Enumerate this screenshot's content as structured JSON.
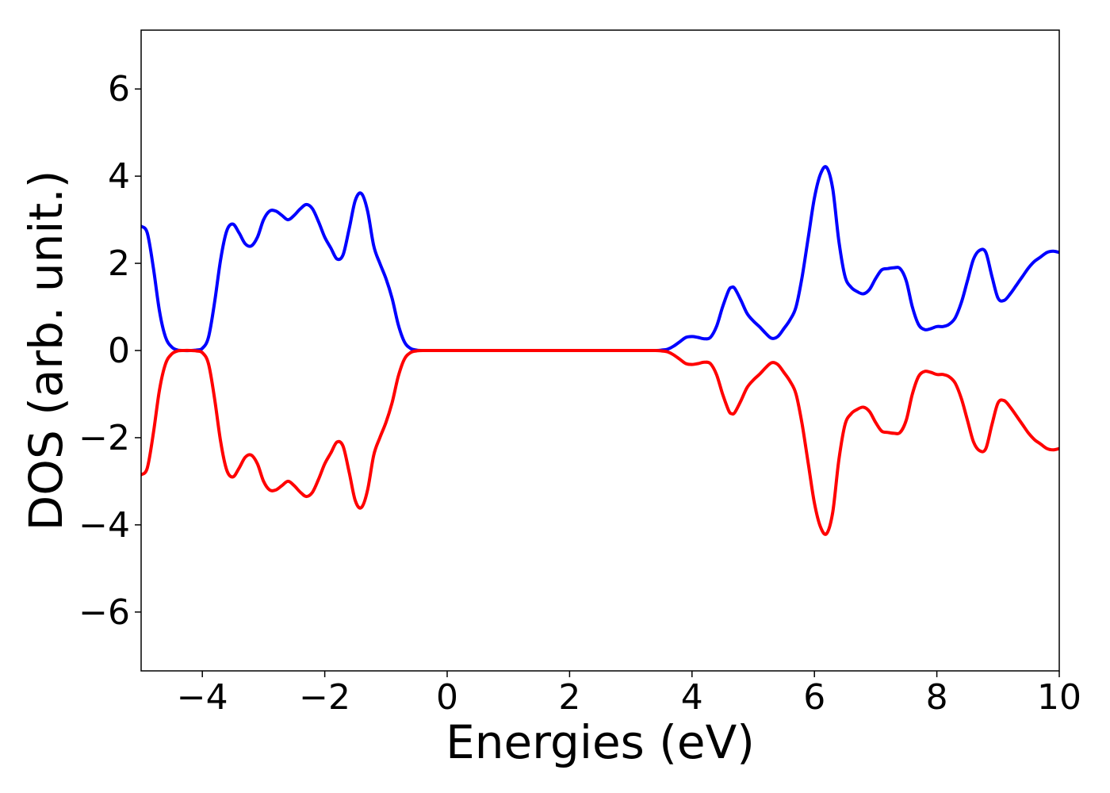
{
  "chart_data": {
    "type": "line",
    "title": "",
    "xlabel": "Energies (eV)",
    "ylabel": "DOS (arb. unit.)",
    "xlim": [
      -5,
      10
    ],
    "ylim": [
      -7.35,
      7.35
    ],
    "xticks": [
      -4,
      -2,
      0,
      2,
      4,
      6,
      8,
      10
    ],
    "yticks": [
      -6,
      -4,
      -2,
      0,
      2,
      4,
      6
    ],
    "xtick_labels": [
      "−4",
      "−2",
      "0",
      "2",
      "4",
      "6",
      "8",
      "10"
    ],
    "ytick_labels": [
      "−6",
      "−4",
      "−2",
      "0",
      "2",
      "4",
      "6"
    ],
    "grid": false,
    "legend": "none",
    "series": [
      {
        "color": "#0000ff",
        "points": [
          [
            -5.0,
            2.85
          ],
          [
            -4.9,
            2.7
          ],
          [
            -4.8,
            1.9
          ],
          [
            -4.7,
            0.9
          ],
          [
            -4.6,
            0.3
          ],
          [
            -4.5,
            0.08
          ],
          [
            -4.4,
            0.01
          ],
          [
            -4.3,
            0.0
          ],
          [
            -4.2,
            0.0
          ],
          [
            -4.1,
            0.01
          ],
          [
            -4.0,
            0.05
          ],
          [
            -3.9,
            0.3
          ],
          [
            -3.8,
            1.1
          ],
          [
            -3.7,
            2.1
          ],
          [
            -3.6,
            2.75
          ],
          [
            -3.5,
            2.9
          ],
          [
            -3.4,
            2.7
          ],
          [
            -3.3,
            2.45
          ],
          [
            -3.2,
            2.4
          ],
          [
            -3.1,
            2.6
          ],
          [
            -3.0,
            3.0
          ],
          [
            -2.9,
            3.2
          ],
          [
            -2.8,
            3.2
          ],
          [
            -2.7,
            3.1
          ],
          [
            -2.6,
            3.0
          ],
          [
            -2.5,
            3.1
          ],
          [
            -2.4,
            3.25
          ],
          [
            -2.3,
            3.35
          ],
          [
            -2.2,
            3.25
          ],
          [
            -2.1,
            2.95
          ],
          [
            -2.0,
            2.6
          ],
          [
            -1.9,
            2.35
          ],
          [
            -1.8,
            2.1
          ],
          [
            -1.7,
            2.2
          ],
          [
            -1.6,
            2.8
          ],
          [
            -1.5,
            3.45
          ],
          [
            -1.4,
            3.6
          ],
          [
            -1.3,
            3.2
          ],
          [
            -1.2,
            2.4
          ],
          [
            -1.1,
            2.0
          ],
          [
            -1.0,
            1.65
          ],
          [
            -0.9,
            1.2
          ],
          [
            -0.8,
            0.6
          ],
          [
            -0.7,
            0.2
          ],
          [
            -0.6,
            0.05
          ],
          [
            -0.5,
            0.01
          ],
          [
            -0.4,
            0.0
          ],
          [
            0.0,
            0.0
          ],
          [
            1.0,
            0.0
          ],
          [
            2.0,
            0.0
          ],
          [
            3.0,
            0.0
          ],
          [
            3.4,
            0.0
          ],
          [
            3.5,
            0.01
          ],
          [
            3.6,
            0.03
          ],
          [
            3.7,
            0.1
          ],
          [
            3.8,
            0.2
          ],
          [
            3.9,
            0.3
          ],
          [
            4.0,
            0.32
          ],
          [
            4.1,
            0.3
          ],
          [
            4.2,
            0.27
          ],
          [
            4.3,
            0.3
          ],
          [
            4.4,
            0.55
          ],
          [
            4.5,
            1.0
          ],
          [
            4.6,
            1.38
          ],
          [
            4.65,
            1.45
          ],
          [
            4.7,
            1.42
          ],
          [
            4.8,
            1.15
          ],
          [
            4.9,
            0.85
          ],
          [
            5.0,
            0.68
          ],
          [
            5.1,
            0.55
          ],
          [
            5.2,
            0.4
          ],
          [
            5.3,
            0.28
          ],
          [
            5.4,
            0.32
          ],
          [
            5.5,
            0.5
          ],
          [
            5.6,
            0.7
          ],
          [
            5.7,
            1.0
          ],
          [
            5.8,
            1.7
          ],
          [
            5.9,
            2.6
          ],
          [
            6.0,
            3.5
          ],
          [
            6.1,
            4.05
          ],
          [
            6.2,
            4.2
          ],
          [
            6.3,
            3.7
          ],
          [
            6.4,
            2.5
          ],
          [
            6.5,
            1.7
          ],
          [
            6.6,
            1.45
          ],
          [
            6.7,
            1.35
          ],
          [
            6.8,
            1.3
          ],
          [
            6.9,
            1.4
          ],
          [
            7.0,
            1.65
          ],
          [
            7.1,
            1.85
          ],
          [
            7.2,
            1.88
          ],
          [
            7.3,
            1.9
          ],
          [
            7.4,
            1.88
          ],
          [
            7.5,
            1.6
          ],
          [
            7.6,
            1.0
          ],
          [
            7.7,
            0.6
          ],
          [
            7.8,
            0.48
          ],
          [
            7.9,
            0.5
          ],
          [
            8.0,
            0.55
          ],
          [
            8.1,
            0.55
          ],
          [
            8.2,
            0.6
          ],
          [
            8.3,
            0.75
          ],
          [
            8.4,
            1.1
          ],
          [
            8.5,
            1.6
          ],
          [
            8.6,
            2.1
          ],
          [
            8.7,
            2.3
          ],
          [
            8.8,
            2.25
          ],
          [
            8.9,
            1.7
          ],
          [
            9.0,
            1.2
          ],
          [
            9.1,
            1.15
          ],
          [
            9.2,
            1.3
          ],
          [
            9.3,
            1.5
          ],
          [
            9.4,
            1.7
          ],
          [
            9.5,
            1.9
          ],
          [
            9.6,
            2.05
          ],
          [
            9.7,
            2.15
          ],
          [
            9.8,
            2.25
          ],
          [
            9.9,
            2.28
          ],
          [
            10.0,
            2.25
          ]
        ]
      },
      {
        "color": "#ff0000",
        "points": [
          [
            -5.0,
            -2.85
          ],
          [
            -4.9,
            -2.7
          ],
          [
            -4.8,
            -1.9
          ],
          [
            -4.7,
            -0.9
          ],
          [
            -4.6,
            -0.3
          ],
          [
            -4.5,
            -0.08
          ],
          [
            -4.4,
            -0.01
          ],
          [
            -4.3,
            0.0
          ],
          [
            -4.2,
            0.0
          ],
          [
            -4.1,
            -0.01
          ],
          [
            -4.0,
            -0.05
          ],
          [
            -3.9,
            -0.3
          ],
          [
            -3.8,
            -1.1
          ],
          [
            -3.7,
            -2.1
          ],
          [
            -3.6,
            -2.75
          ],
          [
            -3.5,
            -2.9
          ],
          [
            -3.4,
            -2.7
          ],
          [
            -3.3,
            -2.45
          ],
          [
            -3.2,
            -2.4
          ],
          [
            -3.1,
            -2.6
          ],
          [
            -3.0,
            -3.0
          ],
          [
            -2.9,
            -3.2
          ],
          [
            -2.8,
            -3.2
          ],
          [
            -2.7,
            -3.1
          ],
          [
            -2.6,
            -3.0
          ],
          [
            -2.5,
            -3.1
          ],
          [
            -2.4,
            -3.25
          ],
          [
            -2.3,
            -3.35
          ],
          [
            -2.2,
            -3.25
          ],
          [
            -2.1,
            -2.95
          ],
          [
            -2.0,
            -2.6
          ],
          [
            -1.9,
            -2.35
          ],
          [
            -1.8,
            -2.1
          ],
          [
            -1.7,
            -2.2
          ],
          [
            -1.6,
            -2.8
          ],
          [
            -1.5,
            -3.45
          ],
          [
            -1.4,
            -3.6
          ],
          [
            -1.3,
            -3.2
          ],
          [
            -1.2,
            -2.4
          ],
          [
            -1.1,
            -2.0
          ],
          [
            -1.0,
            -1.65
          ],
          [
            -0.9,
            -1.2
          ],
          [
            -0.8,
            -0.6
          ],
          [
            -0.7,
            -0.2
          ],
          [
            -0.6,
            -0.05
          ],
          [
            -0.5,
            -0.01
          ],
          [
            -0.4,
            0.0
          ],
          [
            0.0,
            0.0
          ],
          [
            1.0,
            0.0
          ],
          [
            2.0,
            0.0
          ],
          [
            3.0,
            0.0
          ],
          [
            3.4,
            0.0
          ],
          [
            3.5,
            -0.01
          ],
          [
            3.6,
            -0.03
          ],
          [
            3.7,
            -0.1
          ],
          [
            3.8,
            -0.2
          ],
          [
            3.9,
            -0.3
          ],
          [
            4.0,
            -0.32
          ],
          [
            4.1,
            -0.3
          ],
          [
            4.2,
            -0.27
          ],
          [
            4.3,
            -0.3
          ],
          [
            4.4,
            -0.55
          ],
          [
            4.5,
            -1.0
          ],
          [
            4.6,
            -1.38
          ],
          [
            4.65,
            -1.45
          ],
          [
            4.7,
            -1.42
          ],
          [
            4.8,
            -1.15
          ],
          [
            4.9,
            -0.85
          ],
          [
            5.0,
            -0.68
          ],
          [
            5.1,
            -0.55
          ],
          [
            5.2,
            -0.4
          ],
          [
            5.3,
            -0.28
          ],
          [
            5.4,
            -0.32
          ],
          [
            5.5,
            -0.5
          ],
          [
            5.6,
            -0.7
          ],
          [
            5.7,
            -1.0
          ],
          [
            5.8,
            -1.7
          ],
          [
            5.9,
            -2.6
          ],
          [
            6.0,
            -3.5
          ],
          [
            6.1,
            -4.05
          ],
          [
            6.2,
            -4.2
          ],
          [
            6.3,
            -3.7
          ],
          [
            6.4,
            -2.5
          ],
          [
            6.5,
            -1.7
          ],
          [
            6.6,
            -1.45
          ],
          [
            6.7,
            -1.35
          ],
          [
            6.8,
            -1.3
          ],
          [
            6.9,
            -1.4
          ],
          [
            7.0,
            -1.65
          ],
          [
            7.1,
            -1.85
          ],
          [
            7.2,
            -1.88
          ],
          [
            7.3,
            -1.9
          ],
          [
            7.4,
            -1.88
          ],
          [
            7.5,
            -1.6
          ],
          [
            7.6,
            -1.0
          ],
          [
            7.7,
            -0.6
          ],
          [
            7.8,
            -0.48
          ],
          [
            7.9,
            -0.5
          ],
          [
            8.0,
            -0.55
          ],
          [
            8.1,
            -0.55
          ],
          [
            8.2,
            -0.6
          ],
          [
            8.3,
            -0.75
          ],
          [
            8.4,
            -1.1
          ],
          [
            8.5,
            -1.6
          ],
          [
            8.6,
            -2.1
          ],
          [
            8.7,
            -2.3
          ],
          [
            8.8,
            -2.25
          ],
          [
            8.9,
            -1.7
          ],
          [
            9.0,
            -1.2
          ],
          [
            9.1,
            -1.15
          ],
          [
            9.2,
            -1.3
          ],
          [
            9.3,
            -1.5
          ],
          [
            9.4,
            -1.7
          ],
          [
            9.5,
            -1.9
          ],
          [
            9.6,
            -2.05
          ],
          [
            9.7,
            -2.15
          ],
          [
            9.8,
            -2.25
          ],
          [
            9.9,
            -2.28
          ],
          [
            10.0,
            -2.25
          ]
        ]
      }
    ]
  }
}
